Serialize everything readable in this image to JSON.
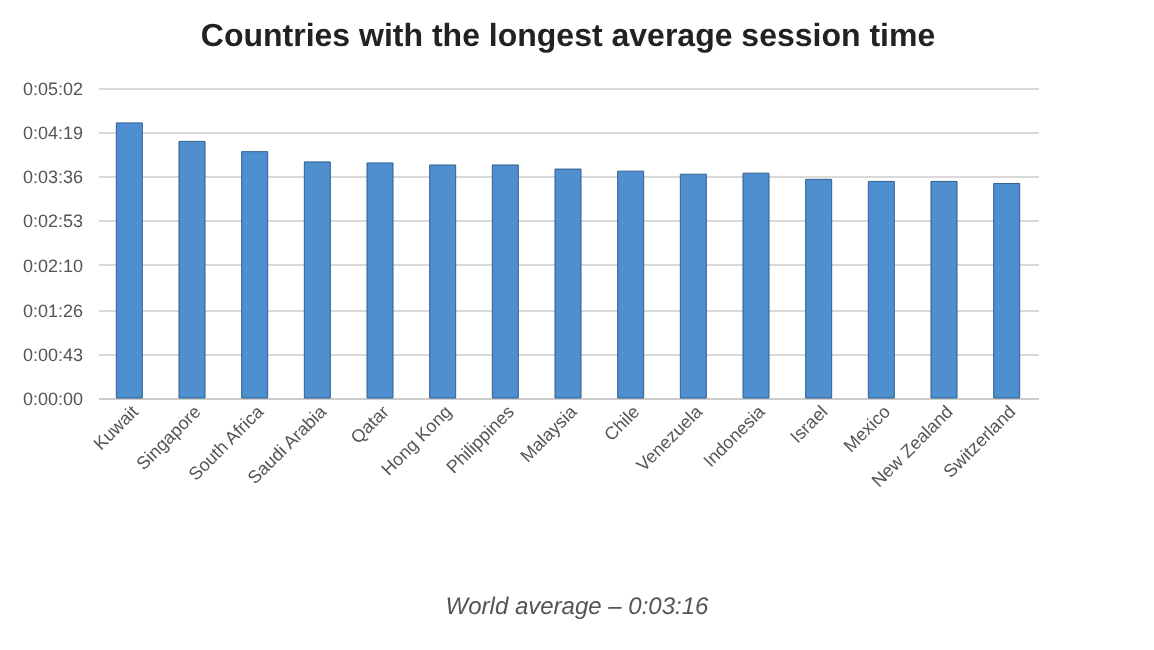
{
  "chart_data": {
    "type": "bar",
    "title": "Countries with the longest average session time",
    "categories": [
      "Kuwait",
      "Singapore",
      "South Africa",
      "Saudi Arabia",
      "Qatar",
      "Hong Kong",
      "Philippines",
      "Malaysia",
      "Chile",
      "Venezuela",
      "Indonesia",
      "Israel",
      "Mexico",
      "New Zealand",
      "Switzerland"
    ],
    "values": [
      268,
      250,
      240,
      230,
      229,
      227,
      227,
      223,
      221,
      218,
      219,
      213,
      211,
      211,
      209
    ],
    "color": "#4f8fd0",
    "ylim": [
      0,
      302
    ],
    "yticks": [
      {
        "value": 0,
        "label": "0:00:00"
      },
      {
        "value": 43,
        "label": "0:00:43"
      },
      {
        "value": 86,
        "label": "0:01:26"
      },
      {
        "value": 130,
        "label": "0:02:10"
      },
      {
        "value": 173,
        "label": "0:02:53"
      },
      {
        "value": 216,
        "label": "0:03:36"
      },
      {
        "value": 259,
        "label": "0:04:19"
      },
      {
        "value": 302,
        "label": "0:05:02"
      }
    ],
    "grid": "y",
    "annotations": [
      "World average – 0:03:16"
    ]
  }
}
